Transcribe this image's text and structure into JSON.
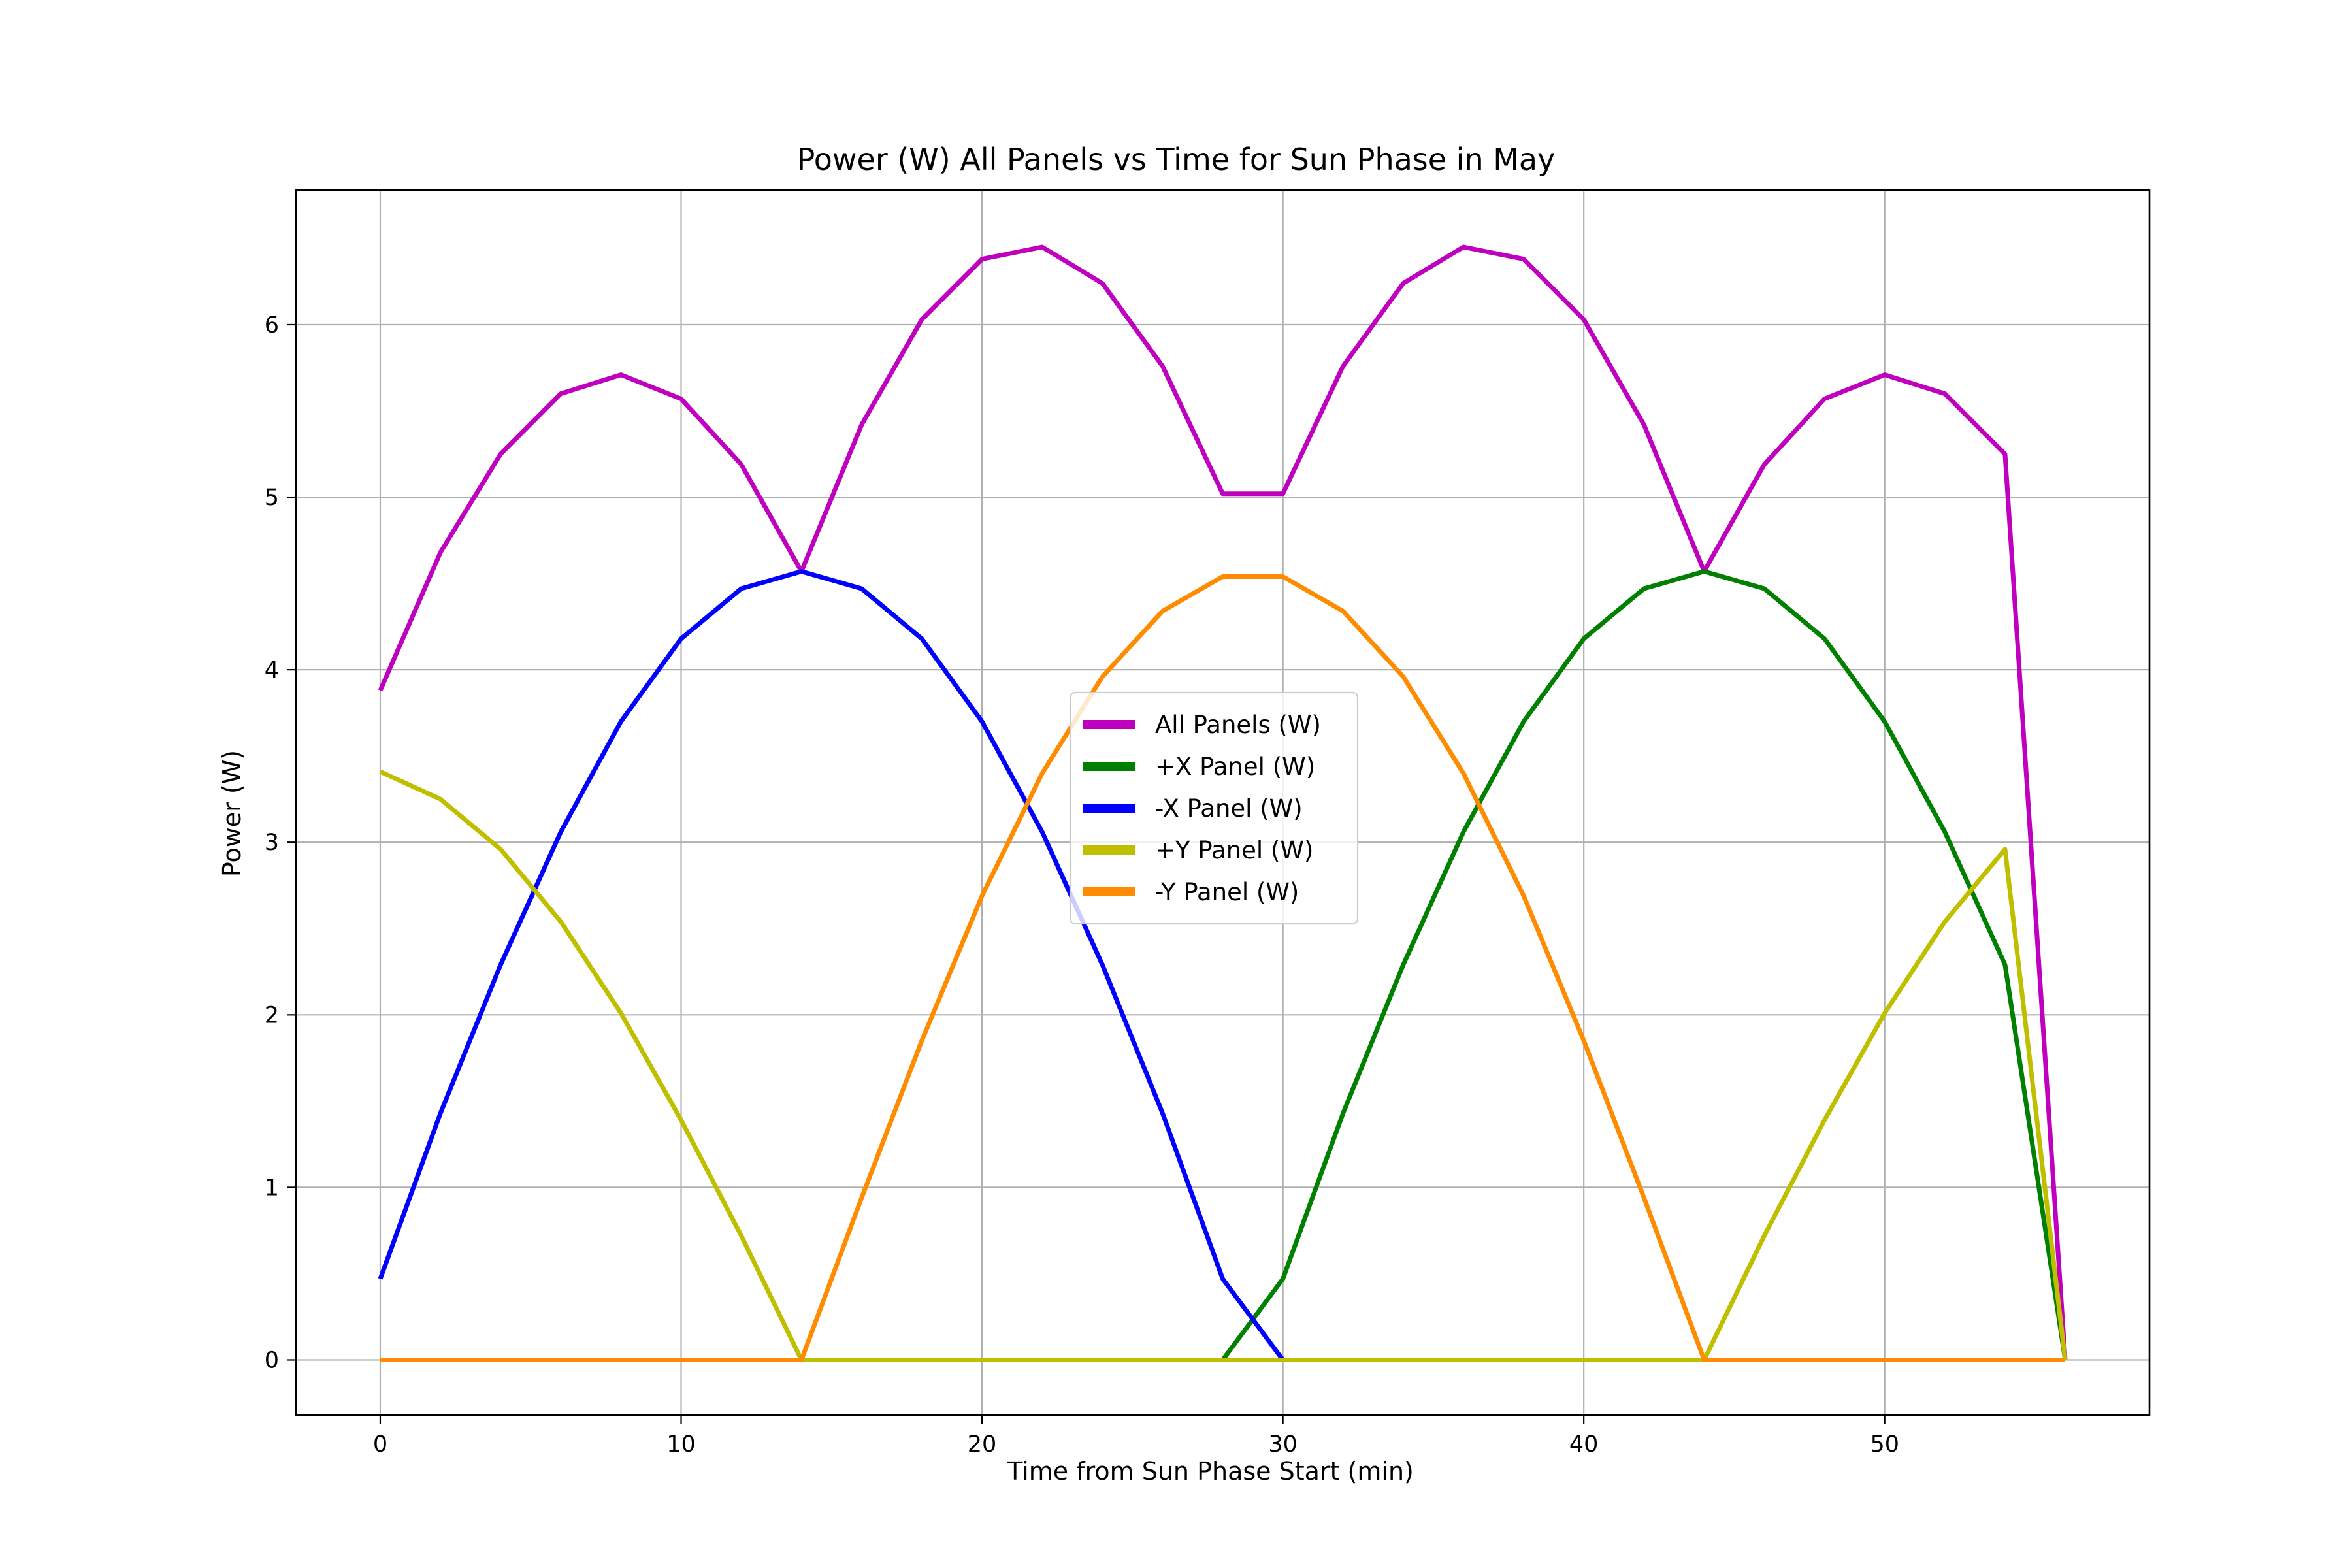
{
  "chart_data": {
    "type": "line",
    "title": "Power (W) All Panels vs Time for Sun Phase in May",
    "xlabel": "Time from Sun Phase Start (min)",
    "ylabel": "Power (W)",
    "xlim": [
      -2.8,
      58.8
    ],
    "ylim": [
      -0.32,
      6.78
    ],
    "xticks": [
      0,
      10,
      20,
      30,
      40,
      50
    ],
    "yticks": [
      0,
      1,
      2,
      3,
      4,
      5,
      6
    ],
    "grid": true,
    "legend_position": "center",
    "x": [
      0,
      2,
      4,
      6,
      8,
      10,
      12,
      14,
      16,
      18,
      20,
      22,
      24,
      26,
      28,
      30,
      32,
      34,
      36,
      38,
      40,
      42,
      44,
      46,
      48,
      50,
      52,
      54,
      56
    ],
    "series": [
      {
        "name": "All Panels (W)",
        "color": "#bf00bf",
        "values": [
          3.88,
          4.68,
          5.25,
          5.6,
          5.71,
          5.57,
          5.19,
          4.57,
          5.42,
          6.03,
          6.38,
          6.45,
          6.24,
          5.76,
          5.02,
          5.02,
          5.76,
          6.24,
          6.45,
          6.38,
          6.03,
          5.42,
          4.57,
          5.19,
          5.57,
          5.71,
          5.6,
          5.25,
          0.0
        ]
      },
      {
        "name": "+X Panel (W)",
        "color": "#008000",
        "values": [
          0,
          0,
          0,
          0,
          0,
          0,
          0,
          0,
          0,
          0,
          0,
          0,
          0,
          0,
          0,
          0.47,
          1.43,
          2.29,
          3.06,
          3.7,
          4.18,
          4.47,
          4.57,
          4.47,
          4.18,
          3.7,
          3.06,
          2.29,
          0
        ]
      },
      {
        "name": "-X Panel (W)",
        "color": "#0000ff",
        "values": [
          0.47,
          1.43,
          2.29,
          3.06,
          3.7,
          4.18,
          4.47,
          4.57,
          4.47,
          4.18,
          3.7,
          3.06,
          2.29,
          1.43,
          0.47,
          0,
          null,
          null,
          null,
          null,
          null,
          null,
          null,
          null,
          null,
          null,
          null,
          null,
          null
        ]
      },
      {
        "name": "+Y Panel (W)",
        "color": "#bfbf00",
        "values": [
          3.41,
          3.25,
          2.96,
          2.54,
          2.01,
          1.39,
          0.72,
          0,
          0,
          0,
          0,
          0,
          0,
          0,
          0,
          0,
          0,
          0,
          0,
          0,
          0,
          0,
          0,
          0.72,
          1.39,
          2.01,
          2.54,
          2.96,
          0
        ]
      },
      {
        "name": "-Y Panel (W)",
        "color": "#ff8c00",
        "values": [
          0,
          0,
          0,
          0,
          0,
          0,
          0,
          0,
          0.94,
          1.85,
          2.69,
          3.4,
          3.96,
          4.34,
          4.54,
          4.54,
          4.34,
          3.96,
          3.4,
          2.69,
          1.85,
          0.94,
          0,
          0,
          0,
          0,
          0,
          0,
          0
        ]
      }
    ]
  }
}
